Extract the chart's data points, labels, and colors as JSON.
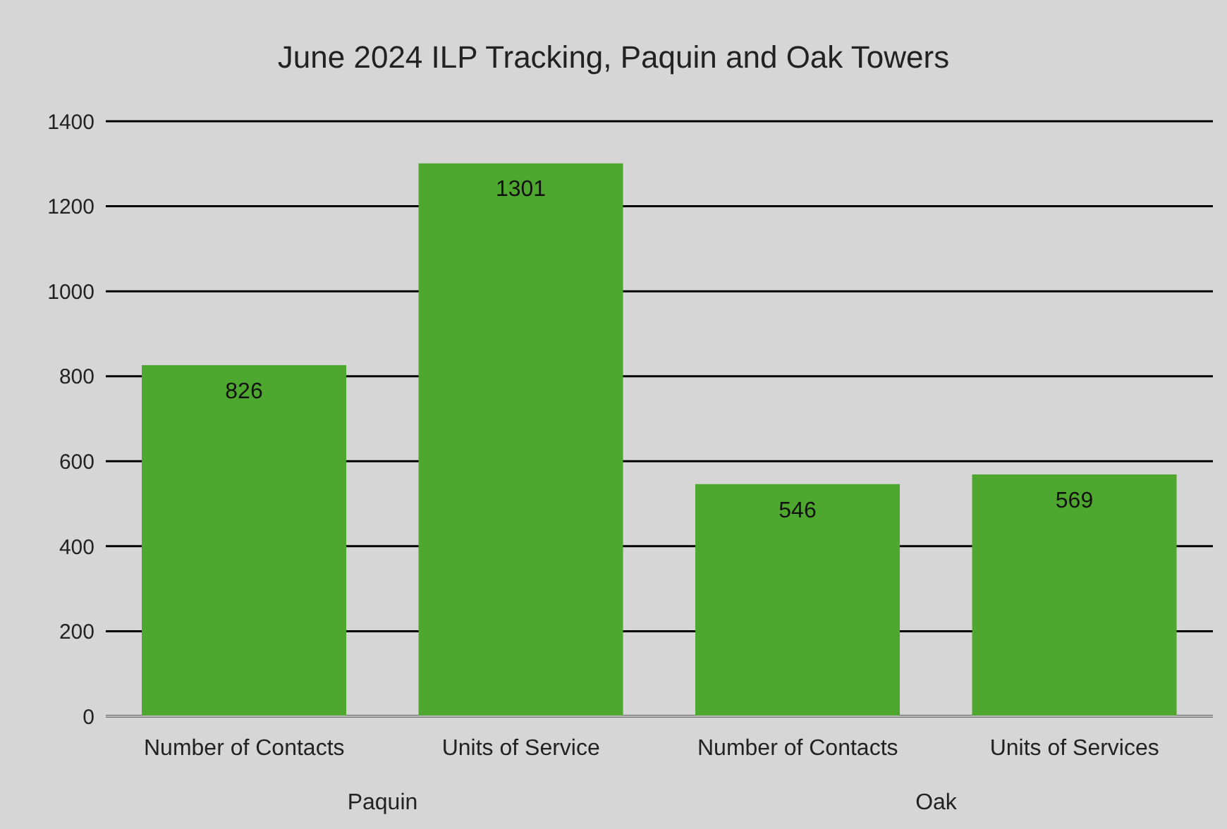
{
  "chart_data": {
    "type": "bar",
    "title": "June 2024 ILP Tracking, Paquin and Oak Towers",
    "categories": [
      "Number of Contacts",
      "Units of Service",
      "Number of Contacts",
      "Units of Services"
    ],
    "values": [
      826,
      1301,
      546,
      569
    ],
    "color": "#4ea72e",
    "ylim": [
      0,
      1400
    ],
    "yticks": [
      0,
      200,
      400,
      600,
      800,
      1000,
      1200,
      1400
    ],
    "grid": "y",
    "data_labels": true,
    "annotations": [
      "Paquin",
      "Oak"
    ]
  }
}
